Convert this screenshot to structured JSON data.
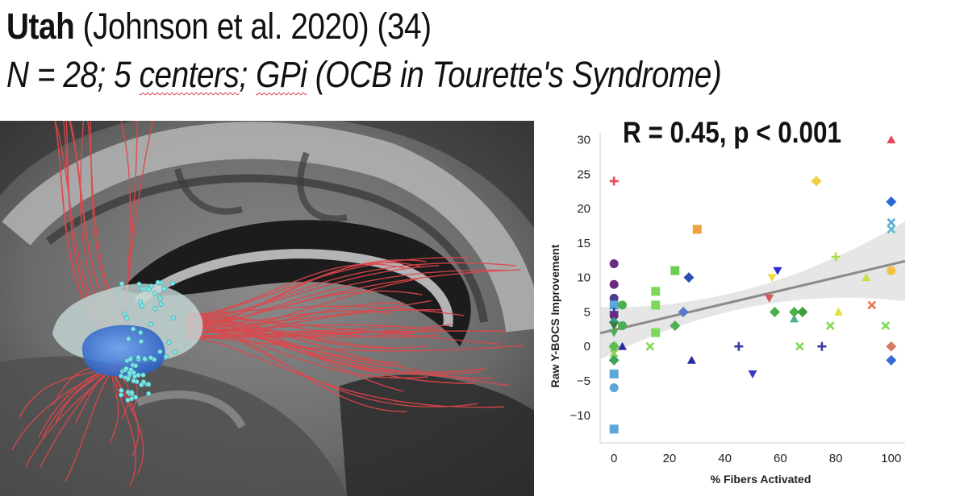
{
  "header": {
    "site": "Utah",
    "citation": "(Johnson et al. 2020) (34)",
    "subtitle_pre": "N = 28; 5 ",
    "subtitle_centers": "centers",
    "subtitle_mid": "; ",
    "subtitle_gpi": "GPi",
    "subtitle_post": "  (OCB in Tourette's Syndrome)"
  },
  "chart_data": {
    "type": "scatter",
    "title": "R = 0.45, p < 0.001",
    "xlabel": "% Fibers Activated",
    "ylabel": "Raw Y-BOCS Improvement",
    "xlim": [
      -5,
      105
    ],
    "ylim": [
      -14,
      31
    ],
    "xticks": [
      0,
      20,
      40,
      60,
      80,
      100
    ],
    "yticks": [
      -10,
      -5,
      0,
      5,
      10,
      15,
      20,
      25,
      30
    ],
    "regression": {
      "slope": 0.095,
      "intercept": 2.4
    },
    "points": [
      {
        "x": 0,
        "y": 24,
        "marker": "plus",
        "color": "#e8475a"
      },
      {
        "x": 0,
        "y": 12,
        "marker": "circle",
        "color": "#6a2c80"
      },
      {
        "x": 0,
        "y": 9,
        "marker": "circle",
        "color": "#6a2c80"
      },
      {
        "x": 0,
        "y": 7,
        "marker": "circle",
        "color": "#4b3f8f"
      },
      {
        "x": 0,
        "y": 6,
        "marker": "square",
        "color": "#5aa8d8"
      },
      {
        "x": 0,
        "y": 5,
        "marker": "plus",
        "color": "#3a3aa0"
      },
      {
        "x": 0,
        "y": 4.5,
        "marker": "circle",
        "color": "#6a2c80"
      },
      {
        "x": 0,
        "y": 3.5,
        "marker": "diamond",
        "color": "#2e9e8a"
      },
      {
        "x": 0,
        "y": 3,
        "marker": "tri-down",
        "color": "#3a7a3a"
      },
      {
        "x": 0,
        "y": 2,
        "marker": "tri-down",
        "color": "#4caf50"
      },
      {
        "x": 0,
        "y": 0,
        "marker": "circle",
        "color": "#7ec6a9"
      },
      {
        "x": 0,
        "y": 0,
        "marker": "diamond",
        "color": "#5cbf4a"
      },
      {
        "x": 0,
        "y": -1,
        "marker": "cross",
        "color": "#8fd14f"
      },
      {
        "x": 0,
        "y": -2,
        "marker": "diamond",
        "color": "#3da35a"
      },
      {
        "x": 0,
        "y": -4,
        "marker": "square",
        "color": "#5aa8d8"
      },
      {
        "x": 0,
        "y": -6,
        "marker": "circle",
        "color": "#5aa8d8"
      },
      {
        "x": 0,
        "y": -12,
        "marker": "square",
        "color": "#5aa8d8"
      },
      {
        "x": 3,
        "y": 6,
        "marker": "circle",
        "color": "#4caf50"
      },
      {
        "x": 3,
        "y": 3,
        "marker": "circle",
        "color": "#4caf50"
      },
      {
        "x": 3,
        "y": 0,
        "marker": "tri-up",
        "color": "#2a2aa0"
      },
      {
        "x": 13,
        "y": 0,
        "marker": "cross",
        "color": "#7ed957"
      },
      {
        "x": 15,
        "y": 8,
        "marker": "square",
        "color": "#7ed957"
      },
      {
        "x": 15,
        "y": 6,
        "marker": "square",
        "color": "#7ed957"
      },
      {
        "x": 15,
        "y": 2,
        "marker": "square",
        "color": "#7ed957"
      },
      {
        "x": 22,
        "y": 11,
        "marker": "square",
        "color": "#6ccf4f"
      },
      {
        "x": 22,
        "y": 3,
        "marker": "diamond",
        "color": "#4caf50"
      },
      {
        "x": 25,
        "y": 5,
        "marker": "diamond",
        "color": "#5a7ac8"
      },
      {
        "x": 27,
        "y": 10,
        "marker": "diamond",
        "color": "#2a4fb0"
      },
      {
        "x": 28,
        "y": -2,
        "marker": "tri-up",
        "color": "#2a2aa0"
      },
      {
        "x": 30,
        "y": 17,
        "marker": "square",
        "color": "#f0a040"
      },
      {
        "x": 45,
        "y": 0,
        "marker": "plus",
        "color": "#3a3aa0"
      },
      {
        "x": 50,
        "y": -4,
        "marker": "tri-down",
        "color": "#3a3ac8"
      },
      {
        "x": 56,
        "y": 7,
        "marker": "tri-down",
        "color": "#d8565a"
      },
      {
        "x": 57,
        "y": 10,
        "marker": "tri-down",
        "color": "#e8e040"
      },
      {
        "x": 58,
        "y": 5,
        "marker": "diamond",
        "color": "#4caf50"
      },
      {
        "x": 59,
        "y": 11,
        "marker": "tri-down",
        "color": "#2a2ad0"
      },
      {
        "x": 65,
        "y": 4,
        "marker": "tri-up",
        "color": "#4caf8a"
      },
      {
        "x": 65,
        "y": 5,
        "marker": "diamond",
        "color": "#4caf50"
      },
      {
        "x": 67,
        "y": 0,
        "marker": "cross",
        "color": "#7ed957"
      },
      {
        "x": 68,
        "y": 5,
        "marker": "diamond",
        "color": "#3a9e3a"
      },
      {
        "x": 73,
        "y": 24,
        "marker": "diamond",
        "color": "#f0d040"
      },
      {
        "x": 75,
        "y": 0,
        "marker": "plus",
        "color": "#3a3aa0"
      },
      {
        "x": 78,
        "y": 3,
        "marker": "cross",
        "color": "#7ed957"
      },
      {
        "x": 80,
        "y": 13,
        "marker": "plus",
        "color": "#a8e040"
      },
      {
        "x": 81,
        "y": 5,
        "marker": "tri-up",
        "color": "#e0e040"
      },
      {
        "x": 91,
        "y": 10,
        "marker": "tri-up",
        "color": "#c8e040"
      },
      {
        "x": 93,
        "y": 6,
        "marker": "cross",
        "color": "#e8704a"
      },
      {
        "x": 98,
        "y": 3,
        "marker": "cross",
        "color": "#7ed957"
      },
      {
        "x": 100,
        "y": 30,
        "marker": "tri-up",
        "color": "#e8475a"
      },
      {
        "x": 100,
        "y": 21,
        "marker": "diamond",
        "color": "#2a6ad8"
      },
      {
        "x": 100,
        "y": 18,
        "marker": "cross",
        "color": "#5aa8d8"
      },
      {
        "x": 100,
        "y": 17,
        "marker": "cross",
        "color": "#5ab8c8"
      },
      {
        "x": 100,
        "y": 11,
        "marker": "circle",
        "color": "#f0c040"
      },
      {
        "x": 100,
        "y": 0,
        "marker": "diamond",
        "color": "#d87a6a"
      },
      {
        "x": 100,
        "y": -2,
        "marker": "diamond",
        "color": "#3a6ad8"
      }
    ]
  }
}
